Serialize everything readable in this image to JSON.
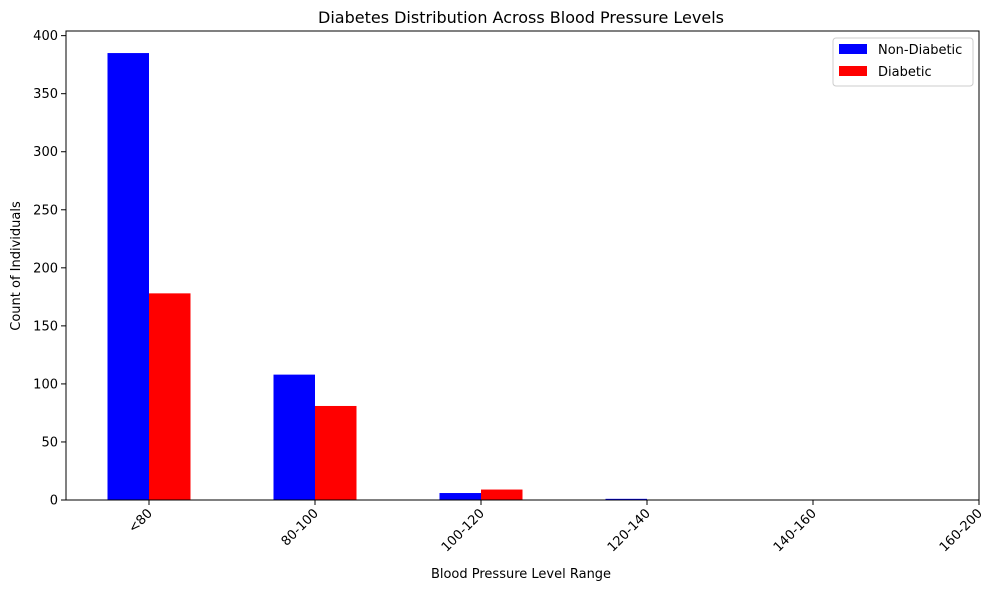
{
  "chart_data": {
    "type": "bar",
    "title": "Diabetes Distribution Across Blood Pressure Levels",
    "xlabel": "Blood Pressure Level Range",
    "ylabel": "Count of Individuals",
    "categories": [
      "<80",
      "80-100",
      "100-120",
      "120-140",
      "140-160",
      "160-200"
    ],
    "series": [
      {
        "name": "Non-Diabetic",
        "color": "#0000ff",
        "values": [
          385,
          108,
          6,
          1,
          0,
          0
        ]
      },
      {
        "name": "Diabetic",
        "color": "#ff0000",
        "values": [
          178,
          81,
          9,
          0,
          0,
          0
        ]
      }
    ],
    "ylim": [
      0,
      404
    ],
    "yticks": [
      0,
      50,
      100,
      150,
      200,
      250,
      300,
      350,
      400
    ],
    "legend_position": "top-right",
    "grid": false
  }
}
